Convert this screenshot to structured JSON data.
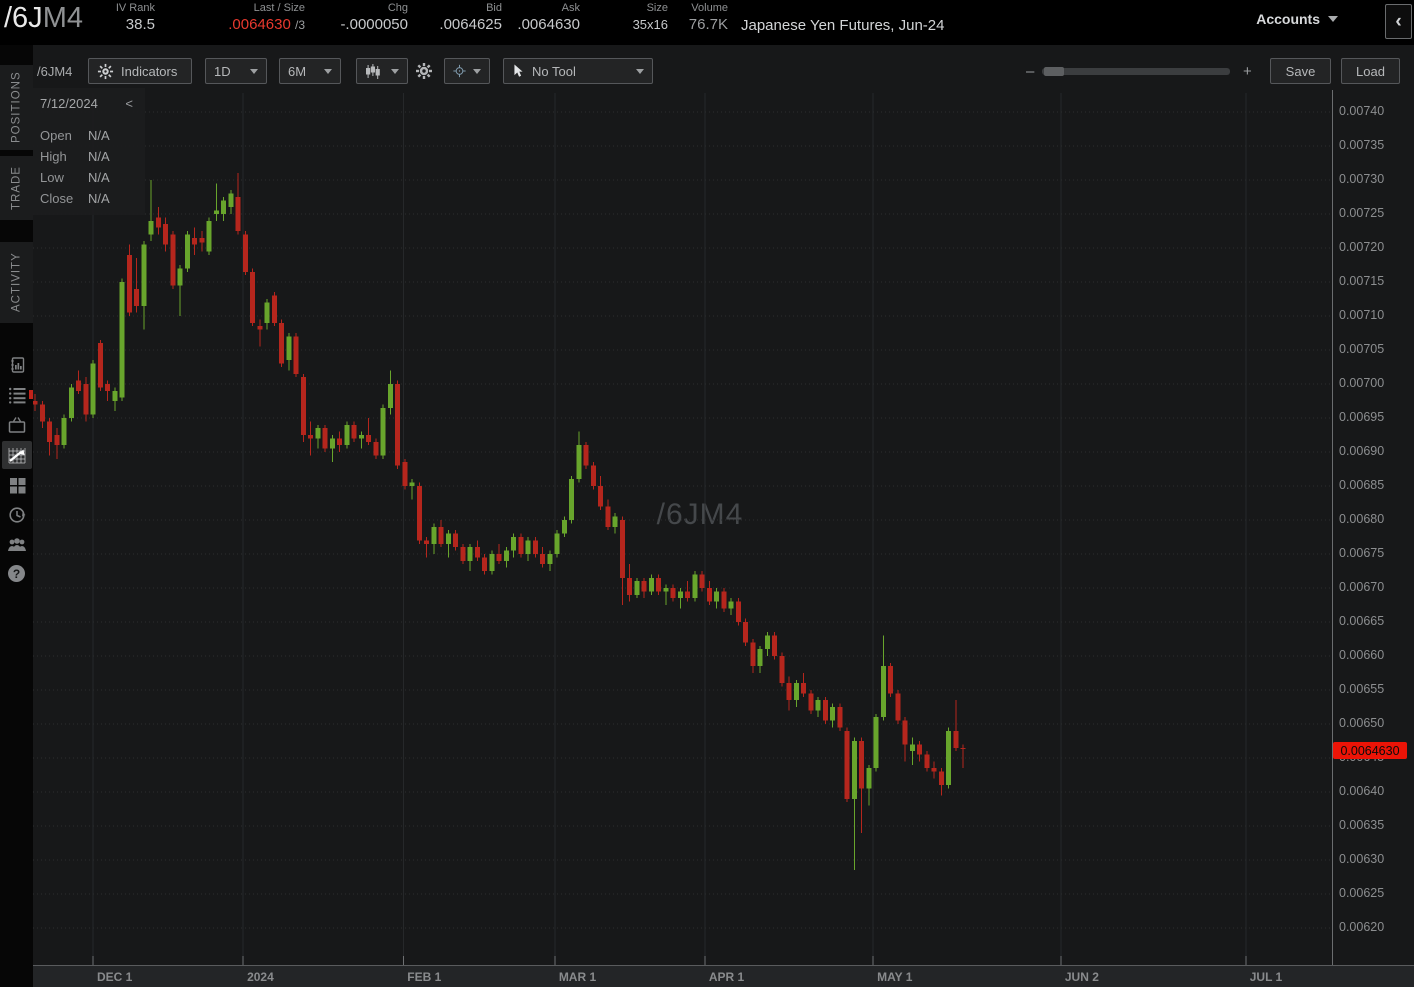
{
  "header": {
    "symbol": "/6J",
    "symbol_month": "M4",
    "stats": [
      {
        "label": "IV Rank",
        "value": "38.5"
      },
      {
        "label": "Last / Size",
        "value": ".0064630",
        "extra": "/3"
      },
      {
        "label": "Chg",
        "value": "-.0000050"
      },
      {
        "label": "Bid",
        "value": ".0064625"
      },
      {
        "label": "Ask",
        "value": ".0064630"
      },
      {
        "label": "Size",
        "value": "35x16"
      },
      {
        "label": "Volume",
        "value": "76.7K"
      }
    ],
    "description": "Japanese Yen Futures, Jun-24",
    "accounts_label": "Accounts",
    "collapse_button": "‹"
  },
  "sidebar": {
    "tabs": [
      "POSITIONS",
      "TRADE",
      "ACTIVITY"
    ],
    "icon_names": [
      "ledger-icon",
      "watchlist-icon",
      "tv-icon",
      "chart-icon",
      "dashboard-icon",
      "history-icon",
      "community-icon",
      "help-icon"
    ],
    "active_icon": "chart-icon",
    "help_glyph": "?"
  },
  "toolbar": {
    "symbol_label": "/6JM4",
    "indicators": "Indicators",
    "timeframe": "1D",
    "range": "6M",
    "tool": "No Tool",
    "save": "Save",
    "load": "Load",
    "zoom_out": "–",
    "zoom_in": "+"
  },
  "ohlc_panel": {
    "date": "7/12/2024",
    "back": "<",
    "rows": [
      {
        "label": "Open",
        "value": "N/A"
      },
      {
        "label": "High",
        "value": "N/A"
      },
      {
        "label": "Low",
        "value": "N/A"
      },
      {
        "label": "Close",
        "value": "N/A"
      }
    ]
  },
  "watermark": "/6JM4",
  "price_tag": "0.0064630",
  "chart_data": {
    "type": "candlestick",
    "instrument": "/6JM4",
    "title": "Japanese Yen Futures, Jun-24",
    "timeframe": "1D",
    "range": "6M",
    "price_unit": 1e-05,
    "last_price": 0.006463,
    "ylim": [
      0.00617,
      0.00742
    ],
    "grid": true,
    "colors": {
      "up": "#68a52c",
      "down": "#b5261d"
    },
    "y_ticks": [
      "0.00740",
      "0.00735",
      "0.00730",
      "0.00725",
      "0.00720",
      "0.00715",
      "0.00710",
      "0.00705",
      "0.00700",
      "0.00695",
      "0.00690",
      "0.00685",
      "0.00680",
      "0.00675",
      "0.00670",
      "0.00665",
      "0.00660",
      "0.00655",
      "0.00650",
      "0.00645",
      "0.00640",
      "0.00635",
      "0.00630",
      "0.00625",
      "0.00620"
    ],
    "months": [
      {
        "label": "DEC 1",
        "i": 8.0
      },
      {
        "label": "2024",
        "i": 28.7
      },
      {
        "label": "FEB 1",
        "i": 50.8
      },
      {
        "label": "MAR 1",
        "i": 71.7
      },
      {
        "label": "APR 1",
        "i": 92.4
      },
      {
        "label": "MAY 1",
        "i": 115.6
      },
      {
        "label": "JUN 2",
        "i": 141.5
      },
      {
        "label": "JUL 1",
        "i": 167.0
      }
    ],
    "candles": [
      [
        697.5,
        698.5,
        696.0,
        697.0
      ],
      [
        697.0,
        697.5,
        693.5,
        694.5
      ],
      [
        694.5,
        695.0,
        689.5,
        691.5
      ],
      [
        692.5,
        693.5,
        689.0,
        691.0
      ],
      [
        691.0,
        695.5,
        690.5,
        695.0
      ],
      [
        695.0,
        700.0,
        694.5,
        699.5
      ],
      [
        700.5,
        702.0,
        698.5,
        699.0
      ],
      [
        700.0,
        701.0,
        694.5,
        695.5
      ],
      [
        695.5,
        703.5,
        695.0,
        703.0
      ],
      [
        706.0,
        706.5,
        699.0,
        699.5
      ],
      [
        700.0,
        700.5,
        697.5,
        699.0
      ],
      [
        697.5,
        699.5,
        696.0,
        699.0
      ],
      [
        698.0,
        715.5,
        697.5,
        715.0
      ],
      [
        719.0,
        720.5,
        710.0,
        710.5
      ],
      [
        714.0,
        718.5,
        710.5,
        711.5
      ],
      [
        711.5,
        721.0,
        708.0,
        720.5
      ],
      [
        722.0,
        730.0,
        721.0,
        724.0
      ],
      [
        724.5,
        726.0,
        722.0,
        723.0
      ],
      [
        723.5,
        724.5,
        719.5,
        720.5
      ],
      [
        722.0,
        722.5,
        714.0,
        714.5
      ],
      [
        714.5,
        717.5,
        710.0,
        717.0
      ],
      [
        717.0,
        722.5,
        716.5,
        722.0
      ],
      [
        721.5,
        723.0,
        719.0,
        720.5
      ],
      [
        721.5,
        722.5,
        719.5,
        720.8
      ],
      [
        719.5,
        724.5,
        719.0,
        724.0
      ],
      [
        725.0,
        729.5,
        724.0,
        725.5
      ],
      [
        725.0,
        727.5,
        724.0,
        727.0
      ],
      [
        726.0,
        728.5,
        725.0,
        728.0
      ],
      [
        727.5,
        731.0,
        722.0,
        722.5
      ],
      [
        722.0,
        722.5,
        716.0,
        716.5
      ],
      [
        716.5,
        717.0,
        708.5,
        709.0
      ],
      [
        708.5,
        709.5,
        705.5,
        708.0
      ],
      [
        709.0,
        712.5,
        708.0,
        712.0
      ],
      [
        713.0,
        713.5,
        708.5,
        709.0
      ],
      [
        709.0,
        709.5,
        702.5,
        703.0
      ],
      [
        703.5,
        707.5,
        702.0,
        707.0
      ],
      [
        707.0,
        707.5,
        701.0,
        701.5
      ],
      [
        701.0,
        701.5,
        691.5,
        692.5
      ],
      [
        692.5,
        694.5,
        689.5,
        692.0
      ],
      [
        692.0,
        694.0,
        690.5,
        693.5
      ],
      [
        693.5,
        694.0,
        690.0,
        690.5
      ],
      [
        690.5,
        692.5,
        688.5,
        692.0
      ],
      [
        692.0,
        693.0,
        690.0,
        691.0
      ],
      [
        691.0,
        694.5,
        690.5,
        694.0
      ],
      [
        694.0,
        694.5,
        691.5,
        692.0
      ],
      [
        692.0,
        693.0,
        690.5,
        692.5
      ],
      [
        692.5,
        695.0,
        691.0,
        691.5
      ],
      [
        691.5,
        692.0,
        689.0,
        689.5
      ],
      [
        689.5,
        697.0,
        689.0,
        696.5
      ],
      [
        696.5,
        702.0,
        695.5,
        700.0
      ],
      [
        700.0,
        700.5,
        687.5,
        688.0
      ],
      [
        688.5,
        689.0,
        684.5,
        685.0
      ],
      [
        685.0,
        686.0,
        683.0,
        685.5
      ],
      [
        685.0,
        685.5,
        676.5,
        677.0
      ],
      [
        677.0,
        677.5,
        674.5,
        676.5
      ],
      [
        676.5,
        679.5,
        675.0,
        679.0
      ],
      [
        679.0,
        680.0,
        676.0,
        676.5
      ],
      [
        676.5,
        678.5,
        674.5,
        678.0
      ],
      [
        678.0,
        678.5,
        675.5,
        676.0
      ],
      [
        676.0,
        676.5,
        673.5,
        674.0
      ],
      [
        674.0,
        676.5,
        672.5,
        676.0
      ],
      [
        676.0,
        677.0,
        674.0,
        674.5
      ],
      [
        674.5,
        675.0,
        672.0,
        672.5
      ],
      [
        672.5,
        675.5,
        672.0,
        675.0
      ],
      [
        675.0,
        676.5,
        673.5,
        674.0
      ],
      [
        674.0,
        676.0,
        673.0,
        675.5
      ],
      [
        675.5,
        678.0,
        674.5,
        677.5
      ],
      [
        677.5,
        678.0,
        674.5,
        675.0
      ],
      [
        675.0,
        677.5,
        674.0,
        677.0
      ],
      [
        677.0,
        677.5,
        674.5,
        675.0
      ],
      [
        675.0,
        676.0,
        673.0,
        673.5
      ],
      [
        673.5,
        675.5,
        672.5,
        675.0
      ],
      [
        675.0,
        678.5,
        674.5,
        678.0
      ],
      [
        678.0,
        680.5,
        677.5,
        680.0
      ],
      [
        680.0,
        686.5,
        679.5,
        686.0
      ],
      [
        686.0,
        693.0,
        685.5,
        691.0
      ],
      [
        691.0,
        691.5,
        687.5,
        688.0
      ],
      [
        688.0,
        688.5,
        684.5,
        685.0
      ],
      [
        685.0,
        686.5,
        681.5,
        682.0
      ],
      [
        682.0,
        683.0,
        678.5,
        679.0
      ],
      [
        679.0,
        681.0,
        678.0,
        680.5
      ],
      [
        680.0,
        680.5,
        667.5,
        671.5
      ],
      [
        671.5,
        673.5,
        668.0,
        669.0
      ],
      [
        669.0,
        671.5,
        668.5,
        671.0
      ],
      [
        671.0,
        671.5,
        668.5,
        669.5
      ],
      [
        669.5,
        672.0,
        669.0,
        671.5
      ],
      [
        671.5,
        672.0,
        669.0,
        669.5
      ],
      [
        669.5,
        670.5,
        667.5,
        670.0
      ],
      [
        670.0,
        670.5,
        668.0,
        668.5
      ],
      [
        668.5,
        670.0,
        667.0,
        669.5
      ],
      [
        669.5,
        671.0,
        668.0,
        668.5
      ],
      [
        668.5,
        672.5,
        668.0,
        672.0
      ],
      [
        672.0,
        672.5,
        669.5,
        670.0
      ],
      [
        670.0,
        671.0,
        667.5,
        668.0
      ],
      [
        668.0,
        670.0,
        667.0,
        669.5
      ],
      [
        669.5,
        670.0,
        666.5,
        667.0
      ],
      [
        667.0,
        668.5,
        666.0,
        668.0
      ],
      [
        668.0,
        668.5,
        664.5,
        665.0
      ],
      [
        665.0,
        665.5,
        661.5,
        662.0
      ],
      [
        662.0,
        662.5,
        657.5,
        658.5
      ],
      [
        658.5,
        661.5,
        657.5,
        661.0
      ],
      [
        661.0,
        663.5,
        660.0,
        663.0
      ],
      [
        663.0,
        663.5,
        659.5,
        660.0
      ],
      [
        660.0,
        660.5,
        655.5,
        656.0
      ],
      [
        656.0,
        657.0,
        652.0,
        653.5
      ],
      [
        653.5,
        656.5,
        652.5,
        656.0
      ],
      [
        656.0,
        657.5,
        654.0,
        654.5
      ],
      [
        654.5,
        655.0,
        651.5,
        652.0
      ],
      [
        652.0,
        654.0,
        651.0,
        653.5
      ],
      [
        653.5,
        654.0,
        650.0,
        650.5
      ],
      [
        650.5,
        653.0,
        649.5,
        652.5
      ],
      [
        652.5,
        653.0,
        649.0,
        649.5
      ],
      [
        649.0,
        649.5,
        638.5,
        639.0
      ],
      [
        639.0,
        648.0,
        628.5,
        647.5
      ],
      [
        647.5,
        648.0,
        634.0,
        640.5
      ],
      [
        640.5,
        644.0,
        638.0,
        643.5
      ],
      [
        643.5,
        651.5,
        643.0,
        651.0
      ],
      [
        651.0,
        663.0,
        650.5,
        658.5
      ],
      [
        658.5,
        659.0,
        654.0,
        654.5
      ],
      [
        654.5,
        655.0,
        650.0,
        650.5
      ],
      [
        650.5,
        651.0,
        644.5,
        647.0
      ],
      [
        646.0,
        648.0,
        644.0,
        647.0
      ],
      [
        647.0,
        647.5,
        644.5,
        645.5
      ],
      [
        645.5,
        646.0,
        643.0,
        643.5
      ],
      [
        643.5,
        644.5,
        642.0,
        643.0
      ],
      [
        643.0,
        643.5,
        639.5,
        641.0
      ],
      [
        641.0,
        649.5,
        640.5,
        649.0
      ],
      [
        649.0,
        653.5,
        646.0,
        646.5
      ],
      [
        646.5,
        647.0,
        643.5,
        646.3
      ]
    ]
  }
}
